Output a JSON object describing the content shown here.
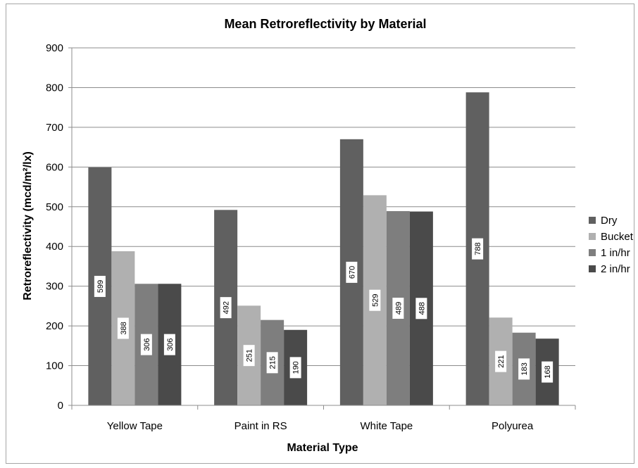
{
  "chart_data": {
    "type": "bar",
    "title": "Mean Retroreflectivity by Material",
    "xlabel": "Material Type",
    "ylabel": "Retroreflectivity (mcd/m²/lx)",
    "categories": [
      "Yellow Tape",
      "Paint in RS",
      "White Tape",
      "Polyurea"
    ],
    "series": [
      {
        "name": "Dry",
        "values": [
          599,
          492,
          670,
          788
        ],
        "color": "#606060"
      },
      {
        "name": "Bucket",
        "values": [
          388,
          251,
          529,
          221
        ],
        "color": "#b0b0b0"
      },
      {
        "name": "1 in/hr",
        "values": [
          306,
          215,
          489,
          183
        ],
        "color": "#7e7e7e"
      },
      {
        "name": "2 in/hr",
        "values": [
          306,
          190,
          488,
          168
        ],
        "color": "#4a4a4a"
      }
    ],
    "ylim": [
      0,
      900
    ],
    "yticks": [
      0,
      100,
      200,
      300,
      400,
      500,
      600,
      700,
      800,
      900
    ],
    "grid": true,
    "legend_position": "right",
    "data_labels": true
  }
}
